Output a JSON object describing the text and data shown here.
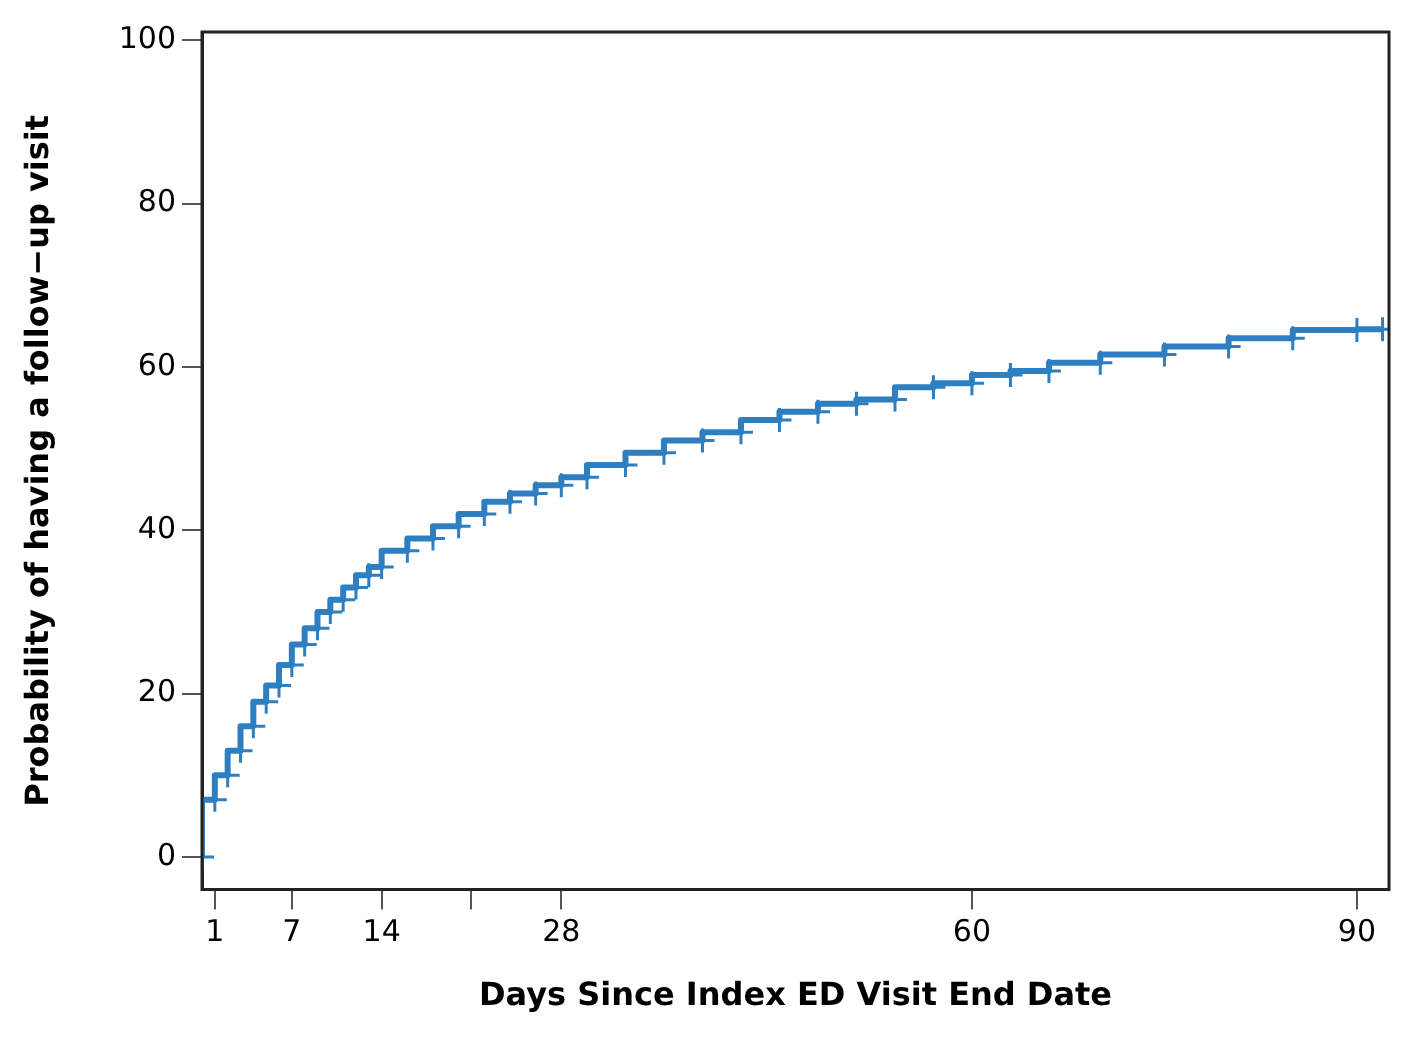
{
  "chart_data": {
    "type": "step",
    "xlabel": "Days Since Index ED Visit End Date",
    "ylabel": "Probability of having a follow−up visit",
    "xlim": [
      0,
      92.5
    ],
    "ylim": [
      -4,
      101
    ],
    "xticks": [
      1,
      7,
      14,
      {
        "value": 21,
        "label": null
      },
      28,
      60,
      90
    ],
    "yticks": [
      0,
      20,
      40,
      60,
      80,
      100
    ],
    "grid": false,
    "legend": false,
    "marker": "cross",
    "line_style": "solid",
    "series": [
      {
        "color": "#2e7fc1",
        "x": [
          0,
          1,
          2,
          3,
          4,
          5,
          6,
          7,
          8,
          9,
          10,
          11,
          12,
          13,
          14,
          16,
          18,
          20,
          22,
          24,
          26,
          28,
          30,
          33,
          36,
          39,
          42,
          45,
          48,
          51,
          54,
          57,
          60,
          63,
          66,
          70,
          75,
          80,
          85,
          90,
          92
        ],
        "values": [
          0,
          7,
          10,
          13,
          16,
          19,
          21,
          23.5,
          26,
          28,
          30,
          31.5,
          33,
          34.5,
          35.5,
          37.5,
          39,
          40.5,
          42,
          43.5,
          44.5,
          45.5,
          46.5,
          48,
          49.5,
          51,
          52,
          53.5,
          54.5,
          55.5,
          56,
          57.5,
          58,
          59,
          59.5,
          60.5,
          61.5,
          62.5,
          63.5,
          64.5,
          64.6
        ]
      }
    ]
  }
}
